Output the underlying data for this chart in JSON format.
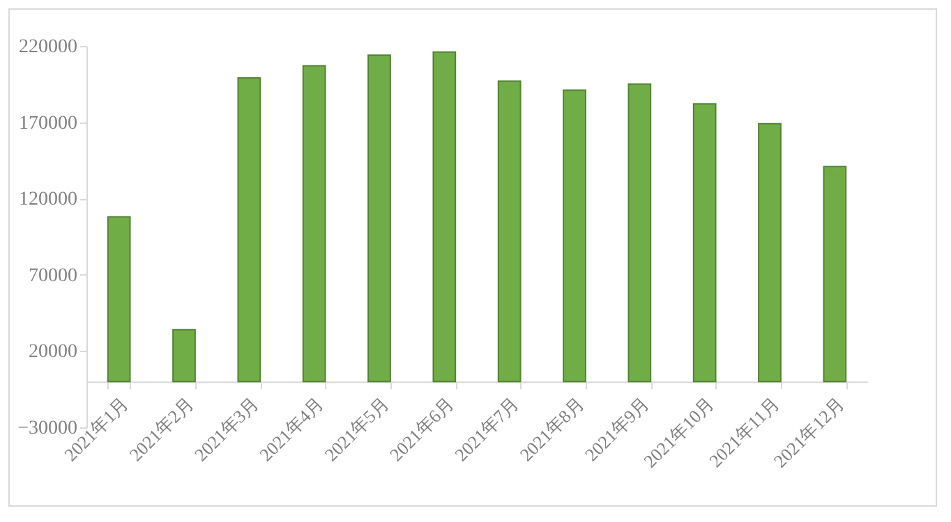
{
  "chart_data": {
    "type": "bar",
    "categories": [
      "2021年1月",
      "2021年2月",
      "2021年3月",
      "2021年4月",
      "2021年5月",
      "2021年6月",
      "2021年7月",
      "2021年8月",
      "2021年9月",
      "2021年10月",
      "2021年11月",
      "2021年12月"
    ],
    "values": [
      108000,
      34000,
      199000,
      207000,
      214000,
      216000,
      197000,
      191000,
      195000,
      182000,
      169000,
      141000
    ],
    "color": "#70ad47",
    "ylim": [
      -30000,
      220000
    ],
    "yticks": [
      -30000,
      20000,
      70000,
      120000,
      170000,
      220000
    ],
    "grid": false
  }
}
